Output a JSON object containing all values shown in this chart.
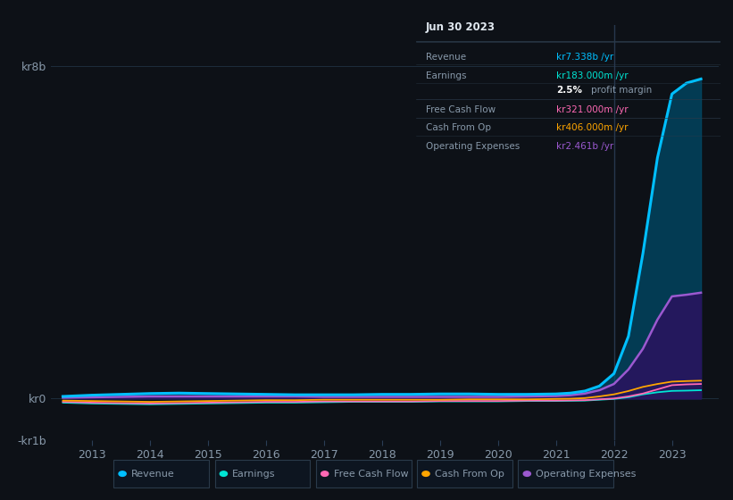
{
  "background_color": "#0d1117",
  "plot_bg_color": "#0d1117",
  "grid_color": "#1e2d3d",
  "text_color": "#8899aa",
  "title_color": "#ffffff",
  "years": [
    2012.5,
    2013,
    2013.5,
    2014,
    2014.5,
    2015,
    2015.5,
    2016,
    2016.5,
    2017,
    2017.5,
    2018,
    2018.5,
    2019,
    2019.5,
    2020,
    2020.5,
    2021,
    2021.25,
    2021.5,
    2021.75,
    2022,
    2022.25,
    2022.5,
    2022.75,
    2023,
    2023.25,
    2023.5
  ],
  "revenue": [
    0.05,
    0.08,
    0.1,
    0.12,
    0.13,
    0.12,
    0.11,
    0.1,
    0.09,
    0.09,
    0.09,
    0.1,
    0.1,
    0.11,
    0.11,
    0.1,
    0.1,
    0.11,
    0.13,
    0.18,
    0.3,
    0.6,
    1.5,
    3.5,
    5.8,
    7.338,
    7.6,
    7.7
  ],
  "earnings": [
    -0.1,
    -0.12,
    -0.13,
    -0.14,
    -0.13,
    -0.12,
    -0.11,
    -0.1,
    -0.1,
    -0.09,
    -0.08,
    -0.08,
    -0.08,
    -0.07,
    -0.07,
    -0.07,
    -0.06,
    -0.06,
    -0.055,
    -0.05,
    -0.03,
    -0.01,
    0.03,
    0.1,
    0.15,
    0.183,
    0.19,
    0.2
  ],
  "free_cash_flow": [
    -0.08,
    -0.1,
    -0.11,
    -0.12,
    -0.11,
    -0.1,
    -0.09,
    -0.08,
    -0.08,
    -0.07,
    -0.07,
    -0.07,
    -0.07,
    -0.06,
    -0.06,
    -0.06,
    -0.05,
    -0.05,
    -0.045,
    -0.04,
    -0.02,
    0.0,
    0.05,
    0.12,
    0.22,
    0.321,
    0.34,
    0.35
  ],
  "cash_from_op": [
    -0.05,
    -0.06,
    -0.07,
    -0.08,
    -0.07,
    -0.06,
    -0.05,
    -0.04,
    -0.04,
    -0.03,
    -0.03,
    -0.03,
    -0.03,
    -0.03,
    -0.02,
    -0.02,
    -0.02,
    -0.01,
    -0.005,
    0.01,
    0.05,
    0.1,
    0.18,
    0.28,
    0.35,
    0.406,
    0.42,
    0.43
  ],
  "op_expenses": [
    0.02,
    0.03,
    0.04,
    0.05,
    0.05,
    0.05,
    0.05,
    0.05,
    0.05,
    0.04,
    0.04,
    0.04,
    0.04,
    0.04,
    0.04,
    0.04,
    0.05,
    0.06,
    0.08,
    0.12,
    0.2,
    0.35,
    0.7,
    1.2,
    1.9,
    2.461,
    2.5,
    2.55
  ],
  "revenue_color": "#00bfff",
  "earnings_color": "#00e5d4",
  "free_cash_flow_color": "#ff69b4",
  "cash_from_op_color": "#ffa500",
  "op_expenses_color": "#9b59d0",
  "revenue_fill_color": "#004e6e",
  "op_expenses_fill_color": "#2d1060",
  "ylim": [
    -1.0,
    9.0
  ],
  "xlim": [
    2012.3,
    2023.8
  ],
  "ytick_vals": [
    -1,
    0,
    8
  ],
  "ytick_labels": [
    "-kr1b",
    "kr0",
    "kr8b"
  ],
  "xtick_years": [
    2013,
    2014,
    2015,
    2016,
    2017,
    2018,
    2019,
    2020,
    2021,
    2022,
    2023
  ],
  "vline_x": 2022.0,
  "vline_color": "#2a3d55",
  "tooltip_bg": "#080c10",
  "tooltip_border": "#2a3a4a",
  "tooltip_title": "Jun 30 2023",
  "tooltip_title_color": "#e0e8f0",
  "tooltip_rows": [
    {
      "label": "Revenue",
      "value": "kr7.338b",
      "suffix": " /yr",
      "color": "#00bfff",
      "extra": null
    },
    {
      "label": "Earnings",
      "value": "kr183.000m",
      "suffix": " /yr",
      "color": "#00e5d4",
      "extra": "2.5% profit margin"
    },
    {
      "label": "Free Cash Flow",
      "value": "kr321.000m",
      "suffix": " /yr",
      "color": "#ff69b4",
      "extra": null
    },
    {
      "label": "Cash From Op",
      "value": "kr406.000m",
      "suffix": " /yr",
      "color": "#ffa500",
      "extra": null
    },
    {
      "label": "Operating Expenses",
      "value": "kr2.461b",
      "suffix": " /yr",
      "color": "#9b59d0",
      "extra": null
    }
  ],
  "legend_items": [
    {
      "label": "Revenue",
      "color": "#00bfff"
    },
    {
      "label": "Earnings",
      "color": "#00e5d4"
    },
    {
      "label": "Free Cash Flow",
      "color": "#ff69b4"
    },
    {
      "label": "Cash From Op",
      "color": "#ffa500"
    },
    {
      "label": "Operating Expenses",
      "color": "#9b59d0"
    }
  ]
}
